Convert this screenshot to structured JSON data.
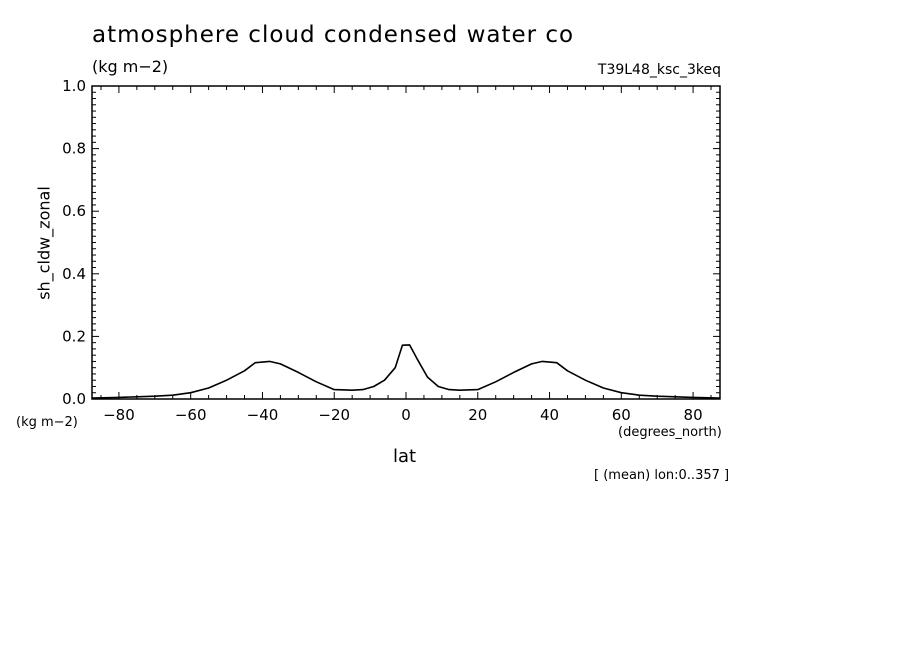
{
  "chart_data": {
    "type": "line",
    "title": "atmosphere cloud condensed water co",
    "units": "(kg m−2)",
    "run_label": "T39L48_ksc_3keq",
    "xlabel": "lat",
    "x_units": "(degrees_north)",
    "ylabel": "sh_cldw_zonal",
    "y_units": "(kg m−2)",
    "note": "[ (mean) lon:0..357 ]",
    "xlim": [
      -87.5,
      87.5
    ],
    "ylim": [
      0.0,
      1.0
    ],
    "xticks": [
      -80,
      -60,
      -40,
      -20,
      0,
      20,
      40,
      60,
      80
    ],
    "xtick_labels": [
      "−80",
      "−60",
      "−40",
      "−20",
      "0",
      "20",
      "40",
      "60",
      "80"
    ],
    "yticks": [
      0.0,
      0.2,
      0.4,
      0.6,
      0.8,
      1.0
    ],
    "ytick_labels": [
      "0.0",
      "0.2",
      "0.4",
      "0.6",
      "0.8",
      "1.0"
    ],
    "grid": false,
    "series": [
      {
        "x": [
          -87.5,
          -80,
          -75,
          -70,
          -65,
          -60,
          -55,
          -50,
          -45,
          -42,
          -38,
          -35,
          -30,
          -25,
          -20,
          -15,
          -12,
          -9,
          -6,
          -3,
          -1,
          1,
          3,
          6,
          9,
          12,
          15,
          20,
          25,
          30,
          35,
          38,
          42,
          45,
          50,
          55,
          60,
          65,
          70,
          75,
          80,
          87.5
        ],
        "y": [
          0.003,
          0.005,
          0.007,
          0.009,
          0.012,
          0.02,
          0.035,
          0.06,
          0.09,
          0.116,
          0.12,
          0.112,
          0.085,
          0.055,
          0.03,
          0.028,
          0.03,
          0.04,
          0.06,
          0.1,
          0.172,
          0.173,
          0.13,
          0.07,
          0.04,
          0.03,
          0.028,
          0.03,
          0.055,
          0.085,
          0.112,
          0.12,
          0.116,
          0.09,
          0.06,
          0.035,
          0.02,
          0.012,
          0.009,
          0.007,
          0.005,
          0.003
        ]
      }
    ]
  }
}
